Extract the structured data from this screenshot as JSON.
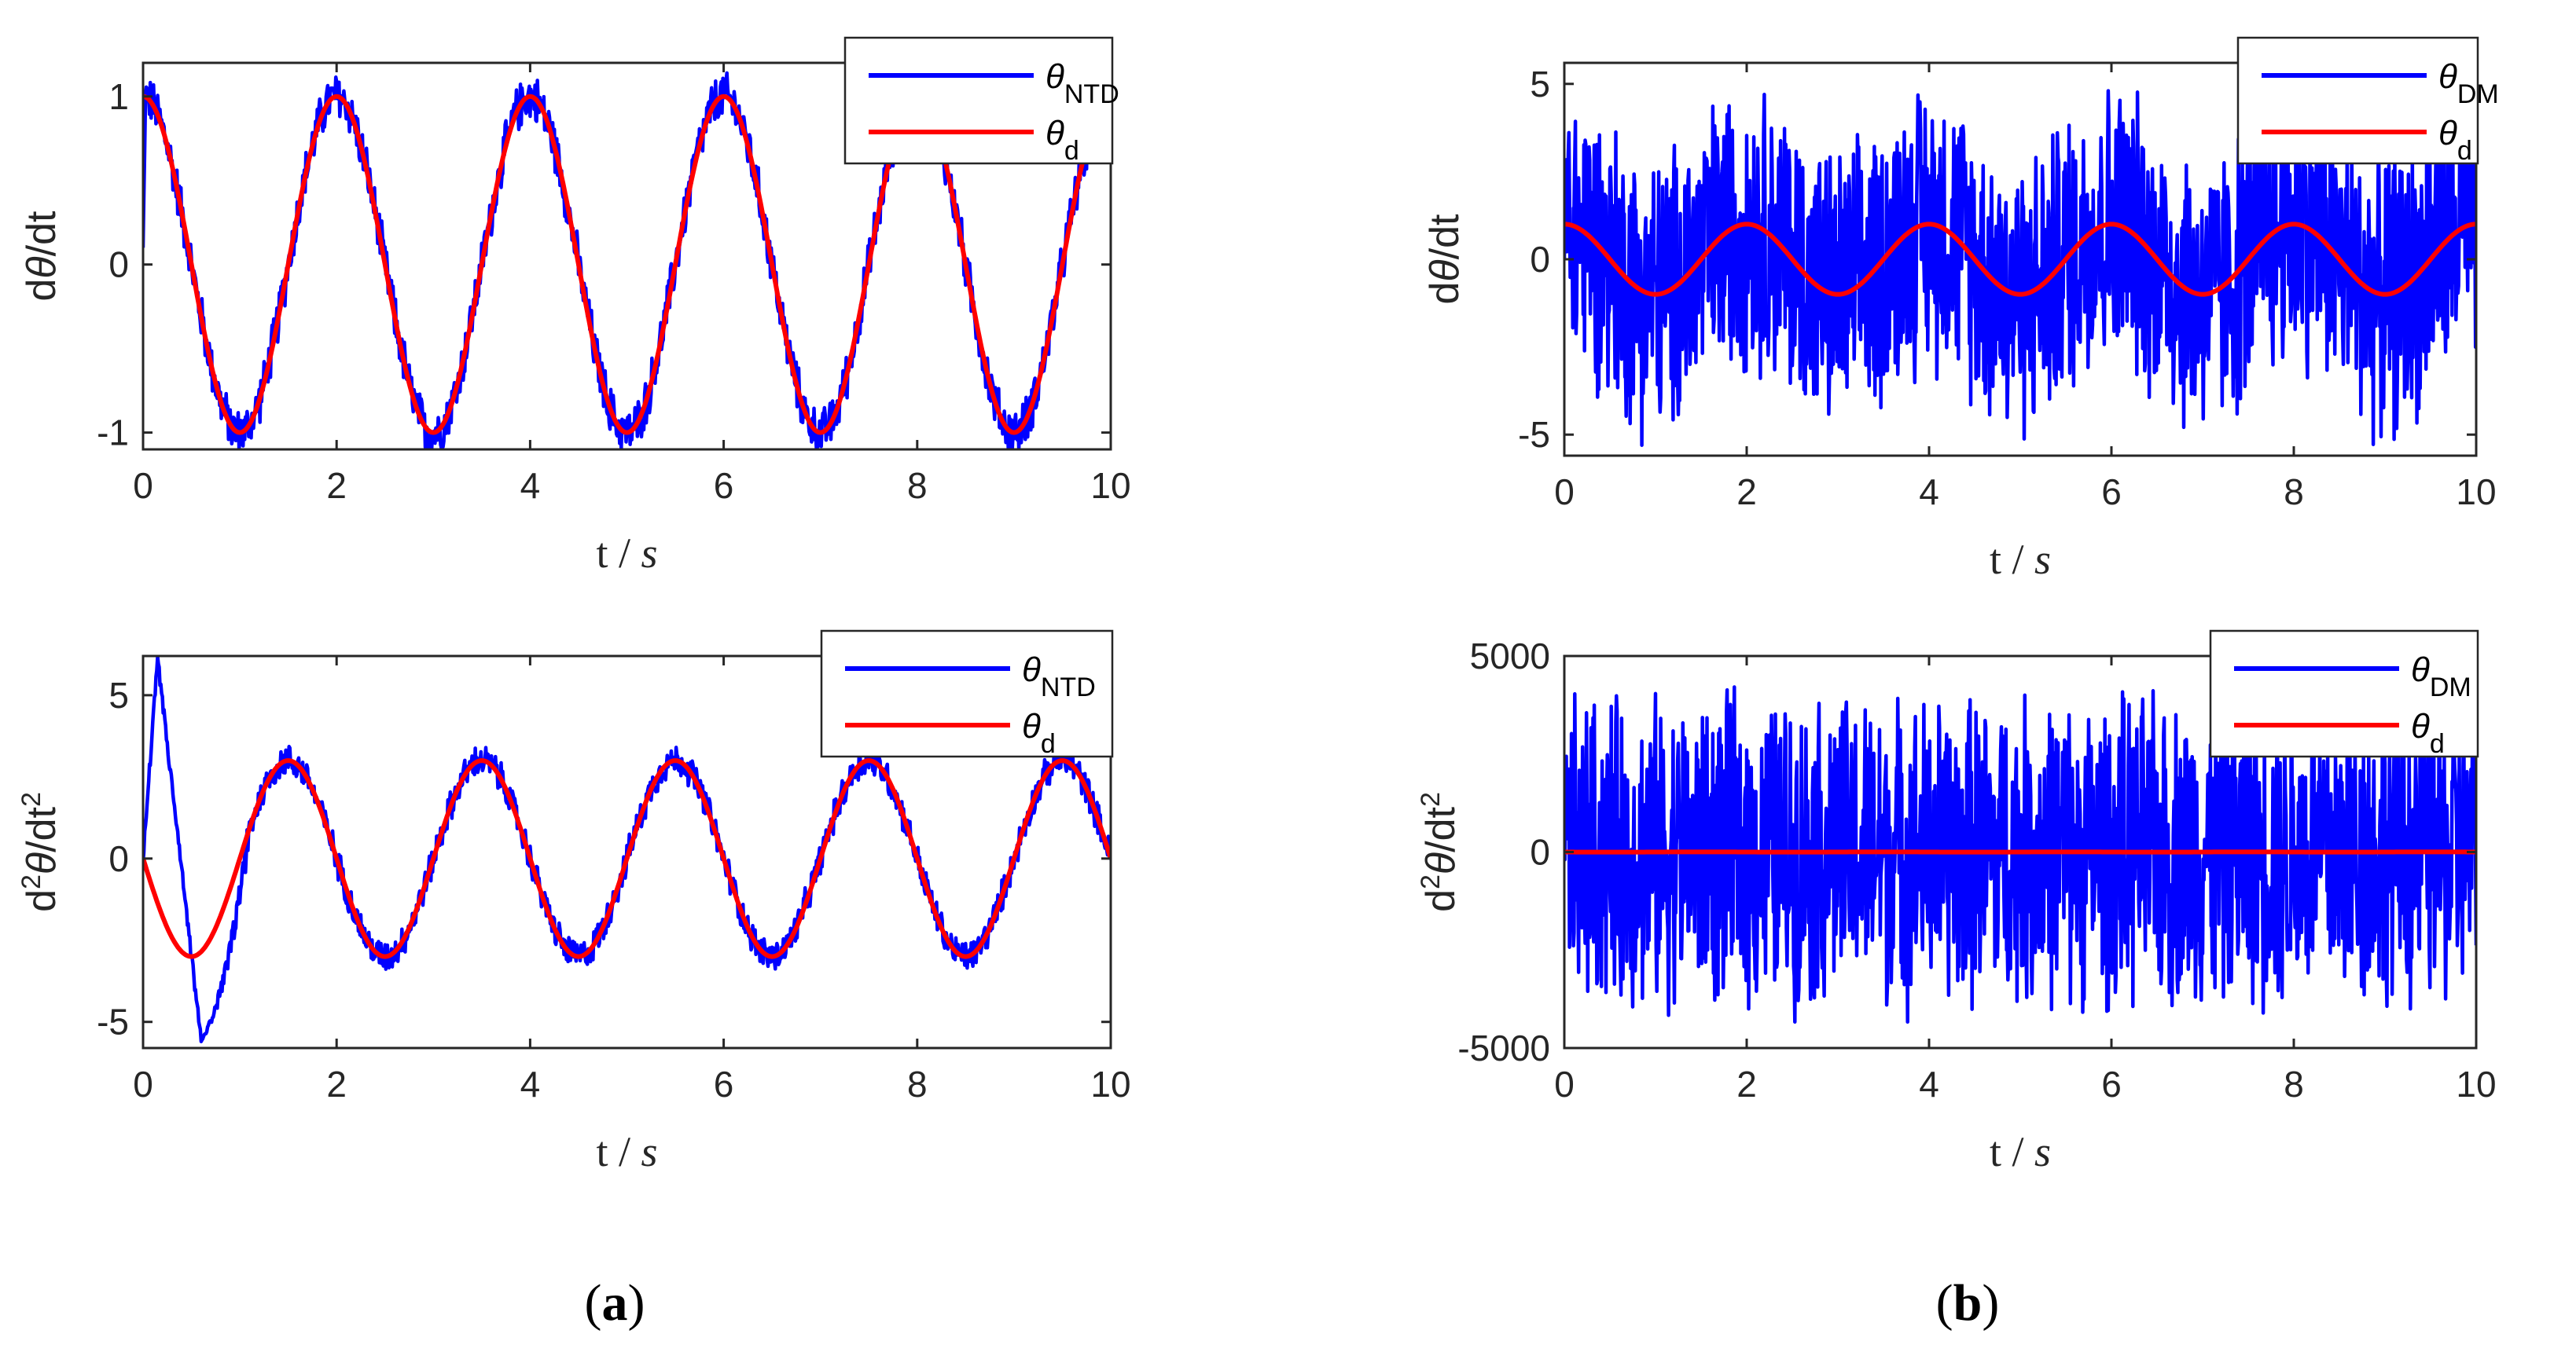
{
  "figure": {
    "panel_labels": [
      "(a)",
      "(b)"
    ],
    "colors": {
      "estimate": "#0000FF",
      "reference": "#FF0000",
      "axis": "#262626"
    }
  },
  "chart_data": [
    {
      "id": "a-top",
      "type": "line",
      "panel": "(a)",
      "title": "",
      "xlabel": "t / s",
      "ylabel": "dθ/dt",
      "xlim": [
        0,
        10
      ],
      "ylim": [
        -1.1,
        1.2
      ],
      "xticks": [
        "0",
        "2",
        "4",
        "6",
        "8",
        "10"
      ],
      "yticks": [
        {
          "v": -1,
          "label": "-1"
        },
        {
          "v": 0,
          "label": "0"
        },
        {
          "v": 1,
          "label": "1"
        }
      ],
      "legend": "top-right",
      "series": [
        {
          "name": "θ",
          "sub": "NTD",
          "role": "estimate",
          "signal": "cos(πt)",
          "amplitude": 1,
          "noise": 0.16,
          "initial_spike": 1.2
        },
        {
          "name": "θ",
          "sub": "d",
          "role": "reference",
          "signal": "cos(πt)",
          "amplitude": 1
        }
      ]
    },
    {
      "id": "a-bottom",
      "type": "line",
      "panel": "(a)",
      "title": "",
      "xlabel": "t / s",
      "ylabel": "d²θ/dt²",
      "xlim": [
        0,
        10
      ],
      "ylim": [
        -5.8,
        6.2
      ],
      "xticks": [
        "0",
        "2",
        "4",
        "6",
        "8",
        "10"
      ],
      "yticks": [
        {
          "v": -5,
          "label": "-5"
        },
        {
          "v": 0,
          "label": "0"
        },
        {
          "v": 5,
          "label": "5"
        }
      ],
      "legend": "top-right",
      "series": [
        {
          "name": "θ",
          "sub": "NTD",
          "role": "estimate",
          "signal": "-3·sin(πt)",
          "amplitude": 3,
          "noise": 0.55,
          "transient": {
            "peak": 6.1,
            "peak_t": 0.15,
            "trough": -5.6,
            "trough_t": 0.6
          }
        },
        {
          "name": "θ",
          "sub": "d",
          "role": "reference",
          "signal": "-3·sin(πt)",
          "amplitude": 3
        }
      ]
    },
    {
      "id": "b-top",
      "type": "line",
      "panel": "(b)",
      "title": "",
      "xlabel": "t / s",
      "ylabel": "dθ/dt",
      "xlim": [
        0,
        10
      ],
      "ylim": [
        -5.6,
        5.6
      ],
      "xticks": [
        "0",
        "2",
        "4",
        "6",
        "8",
        "10"
      ],
      "yticks": [
        {
          "v": -5,
          "label": "-5"
        },
        {
          "v": 0,
          "label": "0"
        },
        {
          "v": 5,
          "label": "5"
        }
      ],
      "legend": "top-right",
      "series": [
        {
          "name": "θ",
          "sub": "DM",
          "role": "estimate",
          "signal": "cos(πt) + noise",
          "amplitude": 1,
          "noise": 4.6
        },
        {
          "name": "θ",
          "sub": "d",
          "role": "reference",
          "signal": "cos(πt)",
          "amplitude": 1
        }
      ]
    },
    {
      "id": "b-bottom",
      "type": "line",
      "panel": "(b)",
      "title": "",
      "xlabel": "t / s",
      "ylabel": "d²θ/dt²",
      "xlim": [
        0,
        10
      ],
      "ylim": [
        -5000,
        5000
      ],
      "xticks": [
        "0",
        "2",
        "4",
        "6",
        "8",
        "10"
      ],
      "yticks": [
        {
          "v": -5000,
          "label": "-5000"
        },
        {
          "v": 0,
          "label": "0"
        },
        {
          "v": 5000,
          "label": "5000"
        }
      ],
      "legend": "top-right",
      "series": [
        {
          "name": "θ",
          "sub": "DM",
          "role": "estimate",
          "signal": "noise",
          "amplitude": 0,
          "noise": 4400
        },
        {
          "name": "θ",
          "sub": "d",
          "role": "reference",
          "signal": "-3·sin(πt)",
          "amplitude": 3
        }
      ]
    }
  ]
}
